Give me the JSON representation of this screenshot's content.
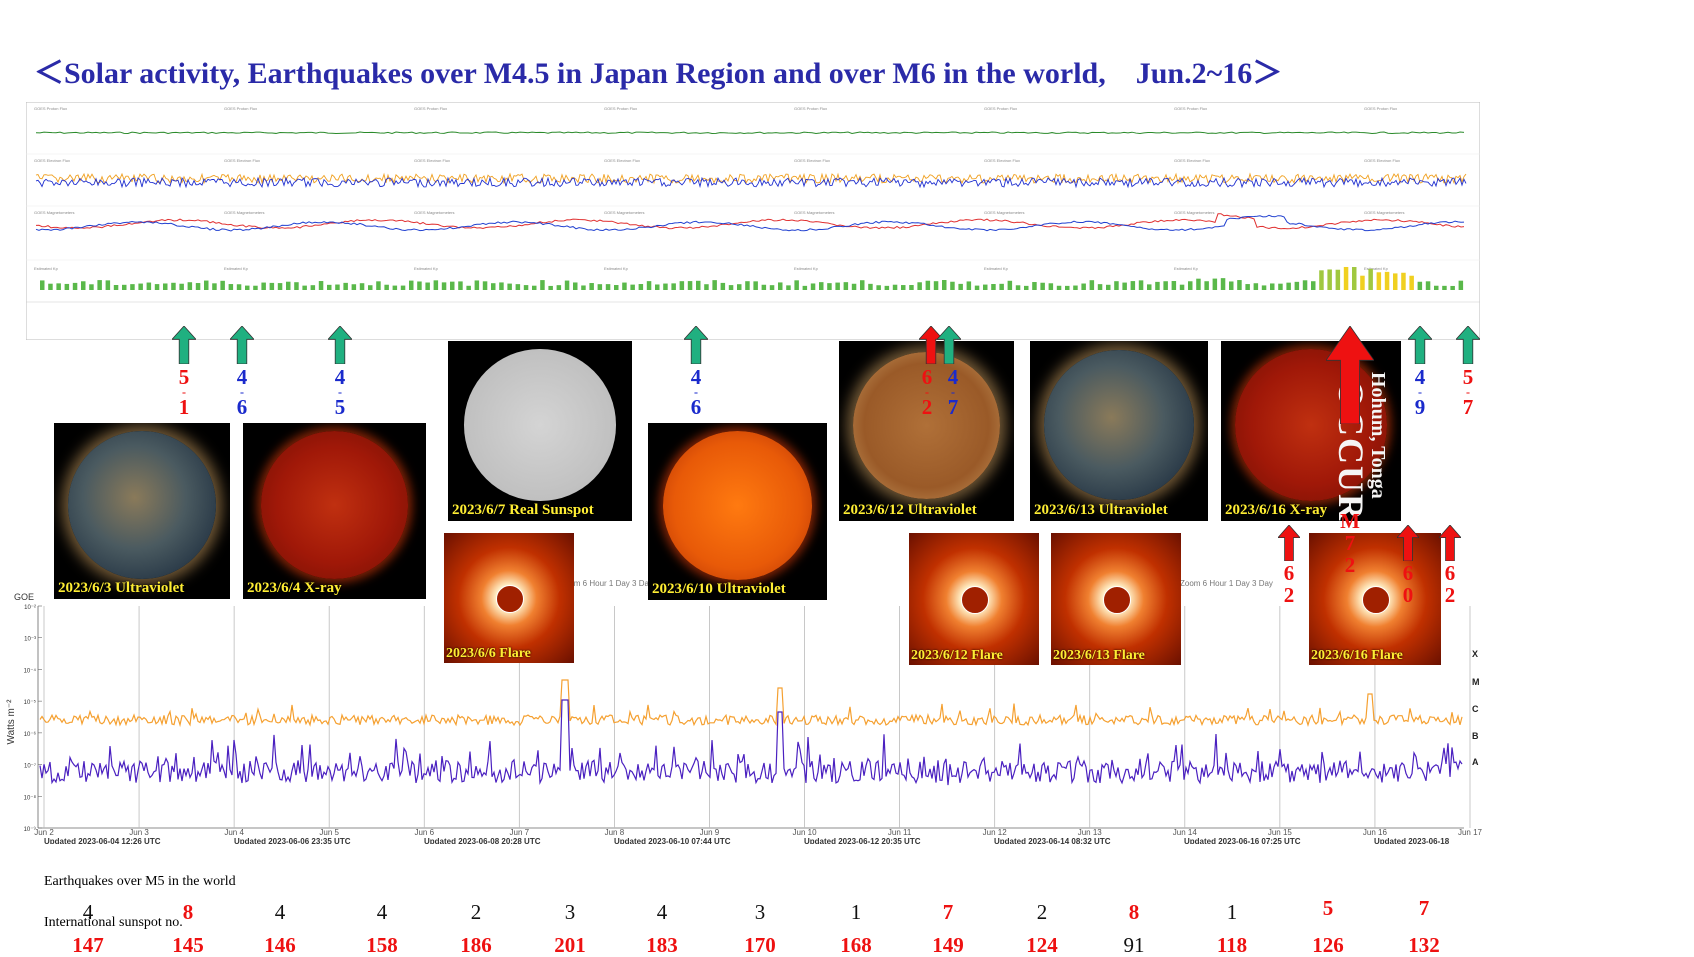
{
  "title": "＜Solar activity, Earthquakes over M4.5 in Japan Region and over M6 in the world,　Jun.2~16＞",
  "colors": {
    "title": "#2a2aa8",
    "red": "#ee1111",
    "blue": "#1a2acc",
    "green_arrow": "#20b080",
    "caption": "#ffee33",
    "xray_long": "#f5a030",
    "xray_short": "#4a20c0"
  },
  "top_panel": {
    "panels": [
      "GOES Proton Flux",
      "GOES Electron Flux",
      "GOES Magnetometers",
      "Estimated Kp"
    ]
  },
  "sun_images": [
    {
      "caption": "2023/6/3 Ultraviolet",
      "style": "uv"
    },
    {
      "caption": "2023/6/4 X-ray",
      "style": "xray"
    },
    {
      "caption": "2023/6/7 Real Sunspot",
      "style": "white"
    },
    {
      "caption": "2023/6/10 Ultraviolet",
      "style": "orange"
    },
    {
      "caption": "2023/6/12 Ultraviolet",
      "style": "gold"
    },
    {
      "caption": "2023/6/13 Ultraviolet",
      "style": "uv"
    },
    {
      "caption": "2023/6/16 X-ray",
      "style": "xray"
    }
  ],
  "flare_images": [
    {
      "caption": "2023/6/6 Flare"
    },
    {
      "caption": "2023/6/12 Flare"
    },
    {
      "caption": "2023/6/13 Flare"
    },
    {
      "caption": "2023/6/16 Flare"
    }
  ],
  "occur_text": "OCCUR",
  "occur_sub": "Hohum, Tonga",
  "upper_arrows": [
    {
      "color": "green",
      "digits": [
        "5",
        "1"
      ],
      "digit_color": "red"
    },
    {
      "color": "green",
      "digits": [
        "4",
        "6"
      ],
      "digit_color": "blue"
    },
    {
      "color": "green",
      "digits": [
        "4",
        "5"
      ],
      "digit_color": "blue"
    },
    {
      "color": "green",
      "digits": [
        "4",
        "6"
      ],
      "digit_color": "blue"
    },
    {
      "color": "red",
      "digits": [
        "6",
        "2"
      ],
      "digit_color": "red"
    },
    {
      "color": "green",
      "digits": [
        "4",
        "7"
      ],
      "digit_color": "blue"
    },
    {
      "color": "red",
      "digits": [],
      "digit_color": "red"
    },
    {
      "color": "green",
      "digits": [
        "4",
        "9"
      ],
      "digit_color": "blue"
    },
    {
      "color": "green",
      "digits": [
        "5",
        "7"
      ],
      "digit_color": "red"
    }
  ],
  "lower_arrows": [
    {
      "digits": [
        "6",
        "2"
      ]
    },
    {
      "digits": [
        "M",
        "7",
        "2"
      ]
    },
    {
      "digits": [
        "6",
        "0"
      ]
    },
    {
      "digits": [
        "6",
        "2"
      ]
    }
  ],
  "xray_chart_labels": {
    "ylabel": "Watts m⁻²",
    "corner": "GOE",
    "classes": [
      "X",
      "M",
      "C",
      "B",
      "A"
    ],
    "yticks": [
      "10⁻²",
      "10⁻³",
      "10⁻⁴",
      "10⁻⁵",
      "10⁻⁶",
      "10⁻⁷",
      "10⁻⁸",
      "10⁻⁹"
    ],
    "zoom_label": "Zoom  6 Hour  1 Day  3 Day",
    "updated": [
      "Updated 2023-06-04 12:26 UTC",
      "Updated 2023-06-06 23:35 UTC",
      "Updated 2023-06-08 20:28 UTC",
      "Updated 2023-06-10 07:44 UTC",
      "Updated 2023-06-12 20:35 UTC",
      "Updated 2023-06-14 08:32 UTC",
      "Updated 2023-06-16 07:25 UTC",
      "Updated 2023-06-18"
    ]
  },
  "chart_data": {
    "type": "table",
    "title": "＜Solar activity, Earthquakes over M4.5 in Japan Region and over M6 in the world,　Jun.2~16＞",
    "row_labels": [
      "Earthquakes over M5 in the world",
      "International sunspot no."
    ],
    "earthquakes_over_m5": [
      {
        "value": "4",
        "color": "black"
      },
      {
        "value": "8",
        "color": "red"
      },
      {
        "value": "4",
        "color": "black"
      },
      {
        "value": "4",
        "color": "black"
      },
      {
        "value": "2",
        "color": "black"
      },
      {
        "value": "3",
        "color": "black"
      },
      {
        "value": "4",
        "color": "black"
      },
      {
        "value": "3",
        "color": "black"
      },
      {
        "value": "1",
        "color": "black"
      },
      {
        "value": "7",
        "color": "red"
      },
      {
        "value": "2",
        "color": "black"
      },
      {
        "value": "8",
        "color": "red"
      },
      {
        "value": "1",
        "color": "black"
      },
      {
        "value": "5",
        "color": "red"
      },
      {
        "value": "7",
        "color": "red"
      }
    ],
    "sunspot_numbers": [
      {
        "value": "147",
        "color": "red"
      },
      {
        "value": "145",
        "color": "red"
      },
      {
        "value": "146",
        "color": "red"
      },
      {
        "value": "158",
        "color": "red"
      },
      {
        "value": "186",
        "color": "red"
      },
      {
        "value": "201",
        "color": "red"
      },
      {
        "value": "183",
        "color": "red"
      },
      {
        "value": "170",
        "color": "red"
      },
      {
        "value": "168",
        "color": "red"
      },
      {
        "value": "149",
        "color": "red"
      },
      {
        "value": "124",
        "color": "red"
      },
      {
        "value": "91",
        "color": "black"
      },
      {
        "value": "118",
        "color": "red"
      },
      {
        "value": "126",
        "color": "red"
      },
      {
        "value": "132",
        "color": "red"
      }
    ],
    "xray_series": [
      {
        "name": "",
        "color": "#f5a030"
      },
      {
        "name": "",
        "color": "#4a20c0"
      }
    ],
    "xray_dates": [
      "Jun 2",
      "Jun 3",
      "Jun 4",
      "Jun 5",
      "Jun 6",
      "Jun 7",
      "Jun 8",
      "Jun 9",
      "Jun 10",
      "Jun 11",
      "Jun 12",
      "Jun 13",
      "Jun 14",
      "Jun 15",
      "Jun 16",
      "Jun 17"
    ]
  }
}
